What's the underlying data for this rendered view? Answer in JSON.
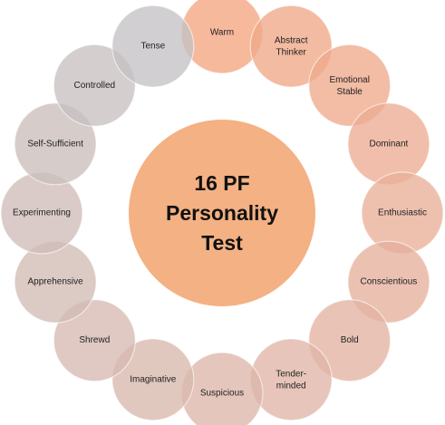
{
  "center": {
    "lines": [
      "16 PF",
      "Personality",
      "Test"
    ]
  },
  "traits": [
    {
      "label": "Warm",
      "color": "#f3a580"
    },
    {
      "label": "Abstract Thinker",
      "color": "#f0a886"
    },
    {
      "label": "Emotional Stable",
      "color": "#eea98c"
    },
    {
      "label": "Dominant",
      "color": "#ecac92"
    },
    {
      "label": "Enthusiastic",
      "color": "#e9af98"
    },
    {
      "label": "Conscientious",
      "color": "#e6b09c"
    },
    {
      "label": "Bold",
      "color": "#e3b3a2"
    },
    {
      "label": "Tender-minded",
      "color": "#e0b5a6"
    },
    {
      "label": "Suspicious",
      "color": "#ddb6a9"
    },
    {
      "label": "Imaginative",
      "color": "#d9b8ad"
    },
    {
      "label": "Shrewd",
      "color": "#d6bab1"
    },
    {
      "label": "Apprehensive",
      "color": "#d2bbb5"
    },
    {
      "label": "Experimenting",
      "color": "#cfbdb9"
    },
    {
      "label": "Self-Sufficient",
      "color": "#cbbfbd"
    },
    {
      "label": "Controlled",
      "color": "#c8c0c0"
    },
    {
      "label": "Tense",
      "color": "#c4c2c4"
    }
  ]
}
